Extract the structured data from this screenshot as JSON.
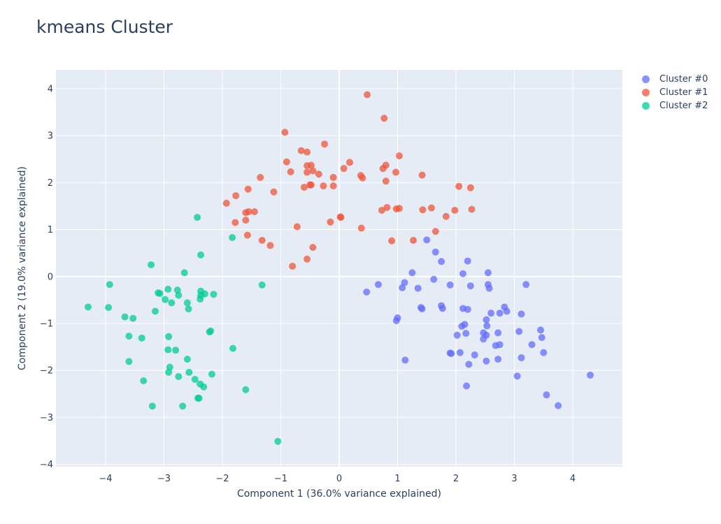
{
  "chart_data": {
    "type": "scatter",
    "title": "kmeans Cluster",
    "xlabel": "Component 1 (36.0% variance explained)",
    "ylabel": "Component 2 (19.0% variance explained)",
    "xlim": [
      -4.85,
      4.85
    ],
    "ylim": [
      -4.05,
      4.4
    ],
    "xticks": [
      -4,
      -3,
      -2,
      -1,
      0,
      1,
      2,
      3,
      4
    ],
    "yticks": [
      -4,
      -3,
      -2,
      -1,
      0,
      1,
      2,
      3,
      4
    ],
    "tick_labels_x": [
      "−4",
      "−3",
      "−2",
      "−1",
      "0",
      "1",
      "2",
      "3",
      "4"
    ],
    "tick_labels_y": [
      "−4",
      "−3",
      "−2",
      "−1",
      "0",
      "1",
      "2",
      "3",
      "4"
    ],
    "grid": true,
    "legend_position": "top-right outside",
    "series": [
      {
        "name": "Cluster #0",
        "color": "#636efa",
        "points": [
          [
            1.5,
            0.78
          ],
          [
            1.65,
            0.52
          ],
          [
            1.75,
            0.32
          ],
          [
            1.25,
            0.08
          ],
          [
            2.2,
            0.33
          ],
          [
            2.55,
            0.08
          ],
          [
            0.67,
            -0.17
          ],
          [
            0.47,
            -0.33
          ],
          [
            1.12,
            -0.13
          ],
          [
            1.08,
            -0.24
          ],
          [
            1.35,
            -0.25
          ],
          [
            1.62,
            -0.06
          ],
          [
            1.9,
            -0.18
          ],
          [
            2.12,
            0.06
          ],
          [
            2.25,
            -0.2
          ],
          [
            2.55,
            -0.17
          ],
          [
            2.57,
            -0.25
          ],
          [
            3.2,
            -0.17
          ],
          [
            1.4,
            -0.66
          ],
          [
            1.42,
            -0.69
          ],
          [
            1.75,
            -0.62
          ],
          [
            1.77,
            -0.68
          ],
          [
            2.12,
            -0.68
          ],
          [
            2.2,
            -0.7
          ],
          [
            2.6,
            -0.78
          ],
          [
            2.75,
            -0.78
          ],
          [
            2.83,
            -0.65
          ],
          [
            2.87,
            -0.74
          ],
          [
            3.12,
            -0.8
          ],
          [
            1.0,
            -0.88
          ],
          [
            0.98,
            -0.94
          ],
          [
            2.52,
            -0.92
          ],
          [
            2.15,
            -1.02
          ],
          [
            2.1,
            -1.06
          ],
          [
            2.53,
            -1.05
          ],
          [
            2.47,
            -1.2
          ],
          [
            2.72,
            -1.2
          ],
          [
            3.08,
            -1.17
          ],
          [
            3.45,
            -1.14
          ],
          [
            2.17,
            -1.21
          ],
          [
            2.02,
            -1.25
          ],
          [
            2.52,
            -1.25
          ],
          [
            2.47,
            -1.33
          ],
          [
            2.75,
            -1.45
          ],
          [
            2.68,
            -1.47
          ],
          [
            3.3,
            -1.45
          ],
          [
            3.47,
            -1.3
          ],
          [
            1.9,
            -1.63
          ],
          [
            1.92,
            -1.64
          ],
          [
            2.07,
            -1.62
          ],
          [
            2.32,
            -1.67
          ],
          [
            3.5,
            -1.62
          ],
          [
            3.12,
            -1.73
          ],
          [
            1.13,
            -1.78
          ],
          [
            2.52,
            -1.8
          ],
          [
            2.72,
            -1.76
          ],
          [
            2.22,
            -1.87
          ],
          [
            3.05,
            -2.12
          ],
          [
            2.18,
            -2.33
          ],
          [
            4.3,
            -2.1
          ],
          [
            3.55,
            -2.52
          ],
          [
            3.75,
            -2.75
          ]
        ]
      },
      {
        "name": "Cluster #1",
        "color": "#ef553b",
        "points": [
          [
            0.48,
            3.87
          ],
          [
            0.77,
            3.37
          ],
          [
            -0.93,
            3.07
          ],
          [
            -0.25,
            2.82
          ],
          [
            -0.65,
            2.68
          ],
          [
            -0.55,
            2.65
          ],
          [
            1.03,
            2.57
          ],
          [
            -0.9,
            2.44
          ],
          [
            -0.55,
            2.36
          ],
          [
            -0.48,
            2.37
          ],
          [
            0.18,
            2.43
          ],
          [
            0.8,
            2.37
          ],
          [
            0.75,
            2.3
          ],
          [
            0.08,
            2.3
          ],
          [
            -0.83,
            2.23
          ],
          [
            -0.55,
            2.22
          ],
          [
            -0.45,
            2.25
          ],
          [
            -0.35,
            2.18
          ],
          [
            0.37,
            2.15
          ],
          [
            0.4,
            2.1
          ],
          [
            0.97,
            2.22
          ],
          [
            1.42,
            2.16
          ],
          [
            -1.35,
            2.11
          ],
          [
            -0.1,
            2.11
          ],
          [
            0.8,
            2.03
          ],
          [
            -0.6,
            1.9
          ],
          [
            -0.5,
            1.95
          ],
          [
            -0.48,
            1.95
          ],
          [
            -0.27,
            1.93
          ],
          [
            -0.1,
            1.93
          ],
          [
            -1.56,
            1.86
          ],
          [
            -1.12,
            1.8
          ],
          [
            2.05,
            1.92
          ],
          [
            2.25,
            1.89
          ],
          [
            -1.77,
            1.72
          ],
          [
            -1.93,
            1.56
          ],
          [
            -1.6,
            1.36
          ],
          [
            -1.55,
            1.38
          ],
          [
            -1.45,
            1.38
          ],
          [
            0.82,
            1.47
          ],
          [
            0.73,
            1.41
          ],
          [
            0.98,
            1.44
          ],
          [
            1.03,
            1.45
          ],
          [
            1.43,
            1.42
          ],
          [
            1.58,
            1.46
          ],
          [
            1.98,
            1.41
          ],
          [
            2.27,
            1.43
          ],
          [
            0.02,
            1.27
          ],
          [
            0.03,
            1.26
          ],
          [
            -1.6,
            1.2
          ],
          [
            -1.78,
            1.15
          ],
          [
            -0.15,
            1.16
          ],
          [
            -0.72,
            1.06
          ],
          [
            0.38,
            1.03
          ],
          [
            1.65,
            0.96
          ],
          [
            1.83,
            1.28
          ],
          [
            -1.57,
            0.88
          ],
          [
            -1.32,
            0.77
          ],
          [
            0.9,
            0.76
          ],
          [
            1.27,
            0.77
          ],
          [
            -1.18,
            0.66
          ],
          [
            -0.45,
            0.62
          ],
          [
            -0.55,
            0.37
          ],
          [
            -0.8,
            0.22
          ]
        ]
      },
      {
        "name": "Cluster #2",
        "color": "#00cc96",
        "points": [
          [
            -2.43,
            1.26
          ],
          [
            -1.83,
            0.83
          ],
          [
            -2.37,
            0.46
          ],
          [
            -3.22,
            0.25
          ],
          [
            -2.65,
            0.08
          ],
          [
            -3.93,
            -0.17
          ],
          [
            -1.32,
            -0.18
          ],
          [
            -2.93,
            -0.27
          ],
          [
            -2.77,
            -0.29
          ],
          [
            -3.1,
            -0.35
          ],
          [
            -3.07,
            -0.36
          ],
          [
            -2.37,
            -0.31
          ],
          [
            -2.3,
            -0.37
          ],
          [
            -2.15,
            -0.38
          ],
          [
            -2.75,
            -0.4
          ],
          [
            -2.37,
            -0.4
          ],
          [
            -2.38,
            -0.48
          ],
          [
            -2.98,
            -0.49
          ],
          [
            -2.87,
            -0.56
          ],
          [
            -2.6,
            -0.56
          ],
          [
            -4.3,
            -0.65
          ],
          [
            -3.95,
            -0.66
          ],
          [
            -2.58,
            -0.69
          ],
          [
            -3.15,
            -0.74
          ],
          [
            -3.67,
            -0.86
          ],
          [
            -3.53,
            -0.89
          ],
          [
            -2.2,
            -1.16
          ],
          [
            -2.22,
            -1.18
          ],
          [
            -3.6,
            -1.27
          ],
          [
            -2.92,
            -1.28
          ],
          [
            -3.38,
            -1.31
          ],
          [
            -1.82,
            -1.53
          ],
          [
            -2.93,
            -1.56
          ],
          [
            -2.8,
            -1.57
          ],
          [
            -2.6,
            -1.76
          ],
          [
            -3.6,
            -1.81
          ],
          [
            -2.9,
            -1.93
          ],
          [
            -2.92,
            -2.04
          ],
          [
            -2.57,
            -2.04
          ],
          [
            -2.18,
            -2.08
          ],
          [
            -2.75,
            -2.13
          ],
          [
            -2.47,
            -2.19
          ],
          [
            -3.35,
            -2.22
          ],
          [
            -2.38,
            -2.29
          ],
          [
            -2.32,
            -2.35
          ],
          [
            -1.6,
            -2.41
          ],
          [
            -2.4,
            -2.59
          ],
          [
            -2.42,
            -2.59
          ],
          [
            -3.2,
            -2.76
          ],
          [
            -2.68,
            -2.76
          ],
          [
            -1.05,
            -3.51
          ]
        ]
      }
    ]
  }
}
